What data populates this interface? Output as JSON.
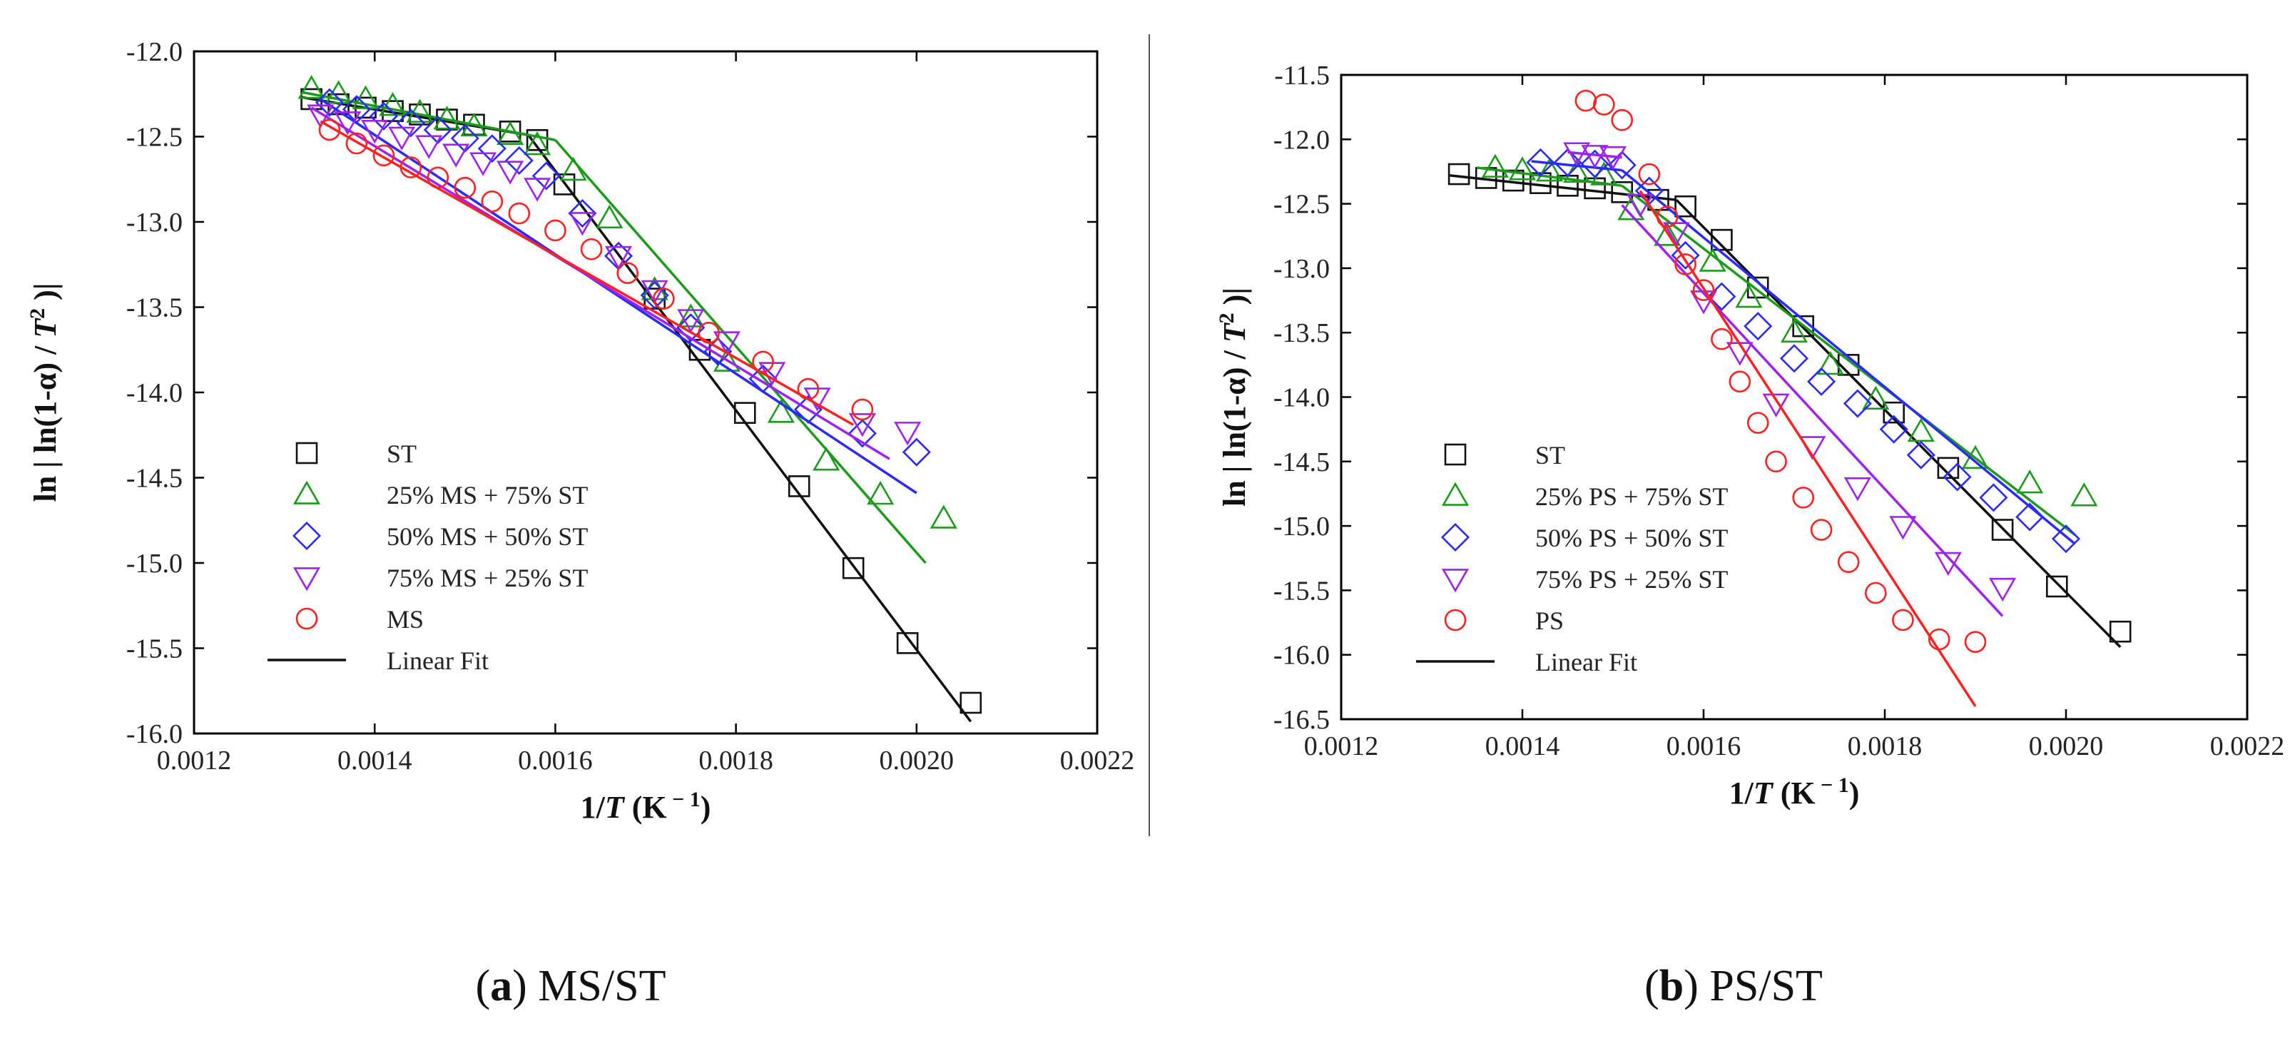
{
  "chart_data": [
    {
      "type": "scatter",
      "panel_label": "a",
      "caption": "MS/ST",
      "xlabel": "1/T (K−1)",
      "ylabel": "ln | ln(1-α) / T² )|",
      "xlim": [
        0.0012,
        0.0022
      ],
      "ylim": [
        -16.0,
        -12.0
      ],
      "xticks": [
        "0.0012",
        "0.0014",
        "0.0016",
        "0.0018",
        "0.0020",
        "0.0022"
      ],
      "yticks": [
        "-12.0",
        "-12.5",
        "-13.0",
        "-13.5",
        "-14.0",
        "-14.5",
        "-15.0",
        "-15.5",
        "-16.0"
      ],
      "legend_position": "bottom-left",
      "legend_fit_label": "Linear Fit",
      "series": [
        {
          "name": "ST",
          "marker": "square",
          "color": "#111111",
          "x": [
            0.00133,
            0.00136,
            0.00139,
            0.00142,
            0.00145,
            0.00148,
            0.00151,
            0.00155,
            0.00158,
            0.00161,
            0.00171,
            0.00176,
            0.00181,
            0.00187,
            0.00193,
            0.00199,
            0.00206
          ],
          "y": [
            -12.28,
            -12.31,
            -12.33,
            -12.35,
            -12.37,
            -12.4,
            -12.43,
            -12.47,
            -12.52,
            -12.78,
            -13.45,
            -13.75,
            -14.12,
            -14.55,
            -15.03,
            -15.47,
            -15.82
          ],
          "fit": [
            [
              [
                0.00132,
                -12.27
              ],
              [
                0.00157,
                -12.49
              ]
            ],
            [
              [
                0.00157,
                -12.49
              ],
              [
                0.00206,
                -15.93
              ]
            ]
          ]
        },
        {
          "name": "25% MS + 75% ST",
          "marker": "triangle-up",
          "color": "#1a9c1a",
          "x": [
            0.00133,
            0.00136,
            0.00139,
            0.00142,
            0.00145,
            0.00148,
            0.00151,
            0.00155,
            0.00158,
            0.00162,
            0.00166,
            0.00171,
            0.00175,
            0.00179,
            0.00185,
            0.0019,
            0.00196,
            0.00203
          ],
          "y": [
            -12.22,
            -12.25,
            -12.28,
            -12.32,
            -12.36,
            -12.4,
            -12.44,
            -12.49,
            -12.55,
            -12.7,
            -12.98,
            -13.4,
            -13.56,
            -13.82,
            -14.12,
            -14.4,
            -14.6,
            -14.74
          ],
          "fit": [
            [
              [
                0.00132,
                -12.24
              ],
              [
                0.0016,
                -12.52
              ]
            ],
            [
              [
                0.0016,
                -12.52
              ],
              [
                0.00201,
                -15.0
              ]
            ]
          ]
        },
        {
          "name": "50% MS + 50% ST",
          "marker": "diamond",
          "color": "#2a2aff",
          "x": [
            0.00135,
            0.00138,
            0.00141,
            0.00144,
            0.00147,
            0.0015,
            0.00153,
            0.00156,
            0.00159,
            0.00163,
            0.00167,
            0.00171,
            0.00175,
            0.00178,
            0.00183,
            0.00188,
            0.00194,
            0.002
          ],
          "y": [
            -12.3,
            -12.34,
            -12.38,
            -12.42,
            -12.46,
            -12.51,
            -12.57,
            -12.64,
            -12.73,
            -12.95,
            -13.2,
            -13.43,
            -13.62,
            -13.76,
            -13.92,
            -14.1,
            -14.24,
            -14.35
          ],
          "fit": [
            [
              [
                0.00134,
                -12.28
              ],
              [
                0.002,
                -14.59
              ]
            ]
          ]
        },
        {
          "name": "75% MS + 25% ST",
          "marker": "triangle-down",
          "color": "#a020f0",
          "x": [
            0.00134,
            0.00137,
            0.0014,
            0.00143,
            0.00146,
            0.00149,
            0.00152,
            0.00155,
            0.00158,
            0.00163,
            0.00167,
            0.00171,
            0.00175,
            0.00179,
            0.00184,
            0.00189,
            0.00194,
            0.00199
          ],
          "y": [
            -12.37,
            -12.41,
            -12.46,
            -12.5,
            -12.55,
            -12.6,
            -12.65,
            -12.7,
            -12.8,
            -13.0,
            -13.2,
            -13.4,
            -13.57,
            -13.7,
            -13.88,
            -14.03,
            -14.18,
            -14.23
          ],
          "fit": [
            [
              [
                0.00133,
                -12.33
              ],
              [
                0.00197,
                -14.39
              ]
            ]
          ]
        },
        {
          "name": "MS",
          "marker": "circle",
          "color": "#ff2020",
          "x": [
            0.00135,
            0.00138,
            0.00141,
            0.00144,
            0.00147,
            0.0015,
            0.00153,
            0.00156,
            0.0016,
            0.00164,
            0.00168,
            0.00172,
            0.00177,
            0.00183,
            0.00188,
            0.00194
          ],
          "y": [
            -12.46,
            -12.54,
            -12.61,
            -12.68,
            -12.74,
            -12.8,
            -12.88,
            -12.95,
            -13.05,
            -13.16,
            -13.3,
            -13.45,
            -13.65,
            -13.82,
            -13.98,
            -14.1
          ],
          "fit": [
            [
              [
                0.00134,
                -12.41
              ],
              [
                0.00193,
                -14.19
              ]
            ]
          ]
        }
      ]
    },
    {
      "type": "scatter",
      "panel_label": "b",
      "caption": "PS/ST",
      "xlabel": "1/T (K−1)",
      "ylabel": "ln | ln(1-α) / T² )|",
      "xlim": [
        0.0012,
        0.0022
      ],
      "ylim": [
        -16.5,
        -11.5
      ],
      "xticks": [
        "0.0012",
        "0.0014",
        "0.0016",
        "0.0018",
        "0.0020",
        "0.0022"
      ],
      "yticks": [
        "-11.5",
        "-12.0",
        "-12.5",
        "-13.0",
        "-13.5",
        "-14.0",
        "-14.5",
        "-15.0",
        "-15.5",
        "-16.0",
        "-16.5"
      ],
      "legend_position": "bottom-left",
      "legend_fit_label": "Linear Fit",
      "series": [
        {
          "name": "ST",
          "marker": "square",
          "color": "#111111",
          "x": [
            0.00133,
            0.00136,
            0.00139,
            0.00142,
            0.00145,
            0.00148,
            0.00151,
            0.00155,
            0.00158,
            0.00162,
            0.00166,
            0.00171,
            0.00176,
            0.00181,
            0.00187,
            0.00193,
            0.00199,
            0.00206
          ],
          "y": [
            -12.27,
            -12.3,
            -12.32,
            -12.34,
            -12.36,
            -12.38,
            -12.41,
            -12.47,
            -12.52,
            -12.78,
            -13.15,
            -13.45,
            -13.75,
            -14.12,
            -14.55,
            -15.03,
            -15.47,
            -15.82
          ],
          "fit": [
            [
              [
                0.00132,
                -12.28
              ],
              [
                0.00157,
                -12.47
              ]
            ],
            [
              [
                0.00157,
                -12.47
              ],
              [
                0.00206,
                -15.94
              ]
            ]
          ]
        },
        {
          "name": "25% PS + 75% ST",
          "marker": "triangle-up",
          "color": "#1a9c1a",
          "x": [
            0.00137,
            0.0014,
            0.00143,
            0.00146,
            0.00149,
            0.00152,
            0.00156,
            0.00161,
            0.00165,
            0.0017,
            0.00174,
            0.00179,
            0.00184,
            0.0019,
            0.00196,
            0.00202
          ],
          "y": [
            -12.22,
            -12.24,
            -12.25,
            -12.26,
            -12.28,
            -12.55,
            -12.75,
            -12.95,
            -13.23,
            -13.5,
            -13.75,
            -14.02,
            -14.27,
            -14.48,
            -14.67,
            -14.77
          ],
          "fit": [
            [
              [
                0.00135,
                -12.22
              ],
              [
                0.00151,
                -12.36
              ]
            ],
            [
              [
                0.00151,
                -12.36
              ],
              [
                0.00201,
                -15.07
              ]
            ]
          ]
        },
        {
          "name": "50% PS + 50% ST",
          "marker": "diamond",
          "color": "#2a2aff",
          "x": [
            0.00142,
            0.00145,
            0.00148,
            0.00151,
            0.00154,
            0.00158,
            0.00162,
            0.00166,
            0.0017,
            0.00173,
            0.00177,
            0.00181,
            0.00184,
            0.00188,
            0.00192,
            0.00196,
            0.002
          ],
          "y": [
            -12.18,
            -12.18,
            -12.19,
            -12.2,
            -12.4,
            -12.9,
            -13.22,
            -13.45,
            -13.7,
            -13.88,
            -14.05,
            -14.25,
            -14.45,
            -14.62,
            -14.78,
            -14.93,
            -15.1
          ],
          "fit": [
            [
              [
                0.00141,
                -12.17
              ],
              [
                0.00151,
                -12.24
              ]
            ],
            [
              [
                0.00151,
                -12.24
              ],
              [
                0.00201,
                -15.14
              ]
            ]
          ]
        },
        {
          "name": "75% PS + 25% ST",
          "marker": "triangle-down",
          "color": "#a020f0",
          "x": [
            0.00146,
            0.00148,
            0.0015,
            0.00153,
            0.00157,
            0.0016,
            0.00164,
            0.00168,
            0.00172,
            0.00177,
            0.00182,
            0.00187,
            0.00193
          ],
          "y": [
            -12.1,
            -12.12,
            -12.13,
            -12.5,
            -12.72,
            -13.25,
            -13.65,
            -14.05,
            -14.38,
            -14.7,
            -15.0,
            -15.28,
            -15.48
          ],
          "fit": [
            [
              [
                0.00145,
                -12.1
              ],
              [
                0.00151,
                -12.14
              ]
            ],
            [
              [
                0.00151,
                -12.51
              ],
              [
                0.00193,
                -15.7
              ]
            ]
          ]
        },
        {
          "name": "PS",
          "marker": "circle",
          "color": "#ff2020",
          "x": [
            0.00147,
            0.00149,
            0.00151,
            0.00154,
            0.00156,
            0.00158,
            0.0016,
            0.00162,
            0.00164,
            0.00166,
            0.00168,
            0.00171,
            0.00173,
            0.00176,
            0.00179,
            0.00182,
            0.00186,
            0.0019
          ],
          "y": [
            -11.7,
            -11.73,
            -11.85,
            -12.27,
            -12.6,
            -12.97,
            -13.17,
            -13.55,
            -13.88,
            -14.2,
            -14.5,
            -14.78,
            -15.03,
            -15.28,
            -15.52,
            -15.73,
            -15.88,
            -15.9
          ],
          "fit": [
            [
              [
                0.00153,
                -12.4
              ],
              [
                0.0019,
                -16.4
              ]
            ]
          ]
        }
      ]
    }
  ],
  "panels": [
    {
      "label": "a",
      "text": "MS/ST"
    },
    {
      "label": "b",
      "text": "PS/ST"
    }
  ],
  "y_axis_title": {
    "prefix": "ln | ln(1-α) / ",
    "italic": "T",
    "sup": "2",
    "suffix": " )|"
  },
  "x_axis_title": {
    "prefix": "1/",
    "italic": "T",
    "mid": " (K",
    "sup": " − 1",
    "suffix": ")"
  }
}
